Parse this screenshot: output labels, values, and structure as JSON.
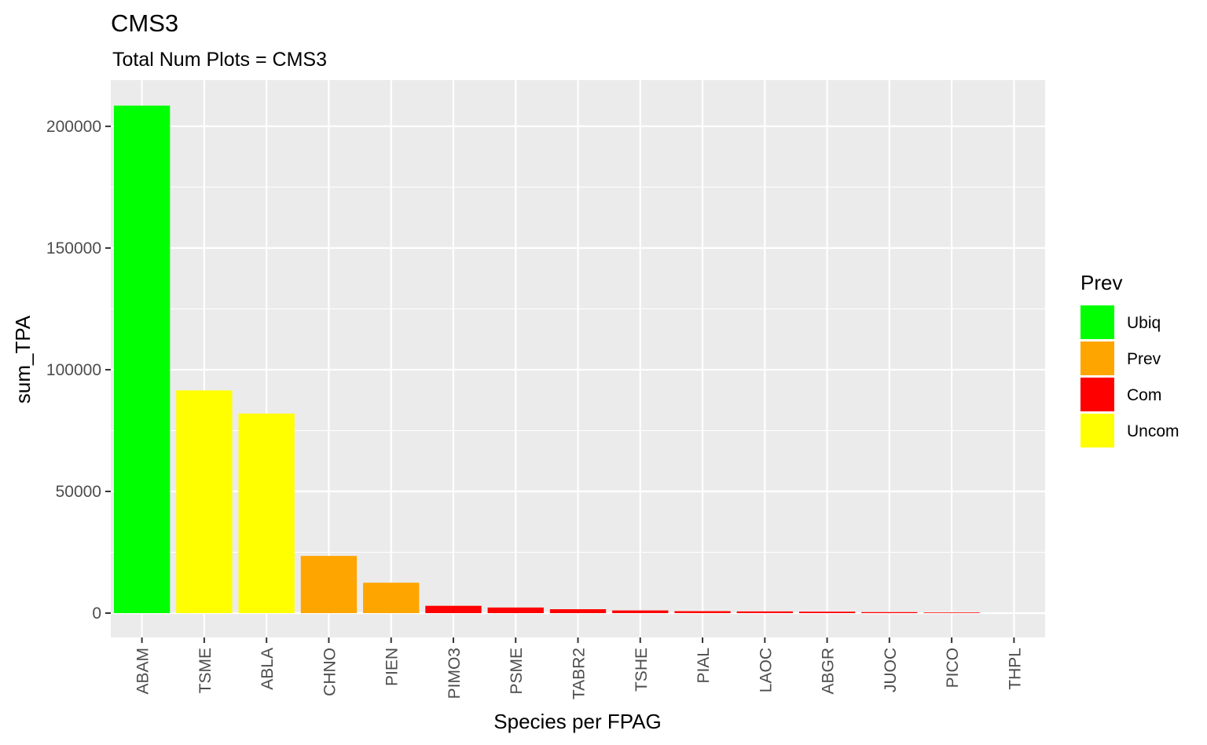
{
  "chart_data": {
    "type": "bar",
    "title": "CMS3",
    "subtitle": "Total Num Plots = CMS3",
    "xlabel": "Species per FPAG",
    "ylabel": "sum_TPA",
    "categories": [
      "ABAM",
      "TSME",
      "ABLA",
      "CHNO",
      "PIEN",
      "PIMO3",
      "PSME",
      "TABR2",
      "TSHE",
      "PIAL",
      "LAOC",
      "ABGR",
      "JUOC",
      "PICO",
      "THPL"
    ],
    "values": [
      208500,
      91500,
      82000,
      23500,
      12500,
      3000,
      2300,
      1600,
      1100,
      800,
      700,
      600,
      400,
      250,
      0
    ],
    "prev": [
      "Ubiq",
      "Uncom",
      "Uncom",
      "Prev",
      "Prev",
      "Com",
      "Com",
      "Com",
      "Com",
      "Com",
      "Com",
      "Com",
      "Com",
      "Com",
      "Com"
    ],
    "ylim": [
      -10000,
      219000
    ],
    "yticks": [
      0,
      50000,
      100000,
      150000,
      200000
    ],
    "ytick_labels": [
      "0",
      "50000",
      "100000",
      "150000",
      "200000"
    ],
    "grid": true,
    "legend": {
      "title": "Prev",
      "position": "right",
      "items": [
        {
          "label": "Ubiq",
          "color": "#00FF00"
        },
        {
          "label": "Prev",
          "color": "#FFA500"
        },
        {
          "label": "Com",
          "color": "#FF0000"
        },
        {
          "label": "Uncom",
          "color": "#FFFF00"
        }
      ]
    },
    "panel_background": "#EBEBEB",
    "grid_color": "#FFFFFF"
  }
}
